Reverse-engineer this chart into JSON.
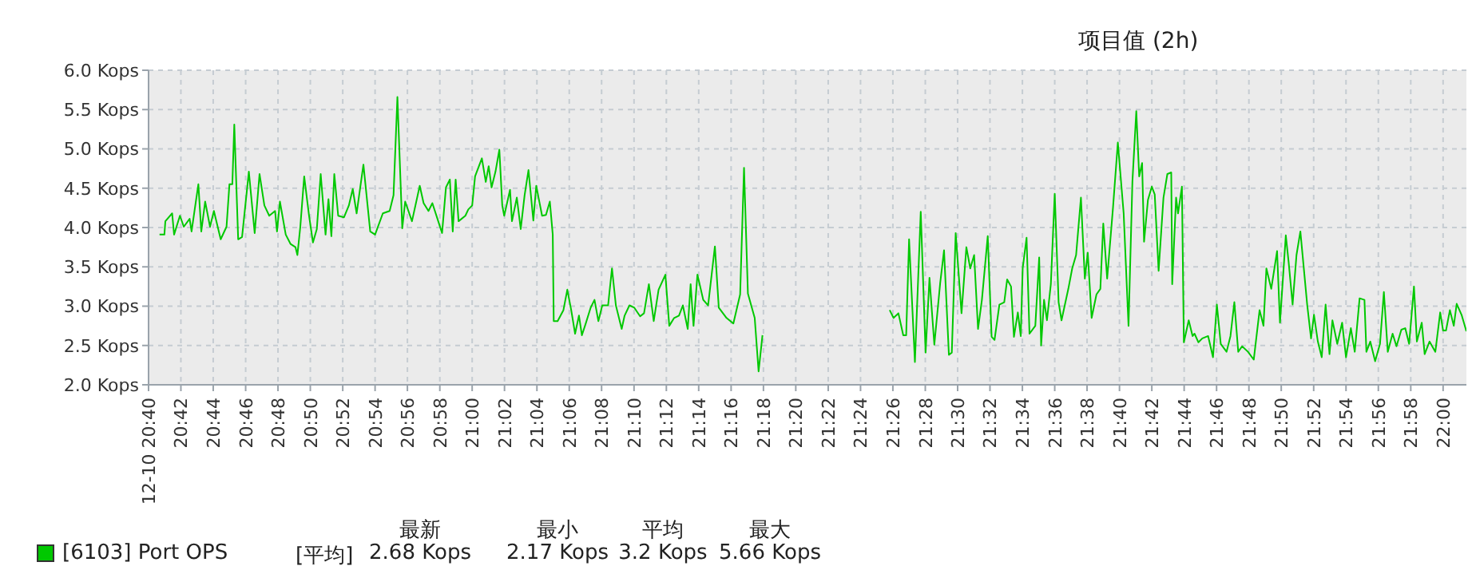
{
  "chart_data": {
    "type": "line",
    "title": "项目值 (2h)",
    "x": [
      20.678,
      20.683,
      20.684,
      20.691,
      20.693,
      20.699,
      20.703,
      20.709,
      20.711,
      20.714,
      20.718,
      20.721,
      20.725,
      20.73,
      20.734,
      20.741,
      20.747,
      20.75,
      20.753,
      20.755,
      20.759,
      20.763,
      20.77,
      20.776,
      20.781,
      20.786,
      20.791,
      20.797,
      20.799,
      20.802,
      20.808,
      20.813,
      20.818,
      20.82,
      20.823,
      20.827,
      20.832,
      20.836,
      20.84,
      20.844,
      20.849,
      20.852,
      20.855,
      20.858,
      20.862,
      20.868,
      20.873,
      20.877,
      20.881,
      20.888,
      20.895,
      20.9,
      20.908,
      20.915,
      20.919,
      20.923,
      20.928,
      20.931,
      20.938,
      20.946,
      20.95,
      20.955,
      20.959,
      20.969,
      20.973,
      20.977,
      20.98,
      20.983,
      20.986,
      20.993,
      20.996,
      21.0,
      21.003,
      21.01,
      21.014,
      21.017,
      21.02,
      21.024,
      21.028,
      21.031,
      21.033,
      21.039,
      21.041,
      21.046,
      21.05,
      21.054,
      21.058,
      21.063,
      21.066,
      21.072,
      21.076,
      21.08,
      21.083,
      21.084,
      21.088,
      21.094,
      21.098,
      21.102,
      21.106,
      21.11,
      21.113,
      21.117,
      21.122,
      21.126,
      21.13,
      21.134,
      21.14,
      21.144,
      21.148,
      21.154,
      21.157,
      21.162,
      21.167,
      21.173,
      21.177,
      21.182,
      21.187,
      21.192,
      21.199,
      21.203,
      21.208,
      21.213,
      21.217,
      21.222,
      21.225,
      21.228,
      21.232,
      21.238,
      21.243,
      21.25,
      21.254,
      21.262,
      21.269,
      21.276,
      21.28,
      21.284,
      21.291,
      21.295,
      21.299,
      21.36,
      21.43,
      21.434,
      21.439,
      21.444,
      21.447,
      21.45,
      21.456,
      21.462,
      21.467,
      21.471,
      21.476,
      21.482,
      21.486,
      21.491,
      21.494,
      21.498,
      21.504,
      21.509,
      21.513,
      21.517,
      21.521,
      21.525,
      21.531,
      21.535,
      21.538,
      21.543,
      21.548,
      21.551,
      21.555,
      21.558,
      21.562,
      21.565,
      21.567,
      21.571,
      21.574,
      21.58,
      21.584,
      21.586,
      21.589,
      21.592,
      21.596,
      21.6,
      21.604,
      21.607,
      21.614,
      21.618,
      21.622,
      21.627,
      21.631,
      21.634,
      21.638,
      21.643,
      21.647,
      21.65,
      21.654,
      21.66,
      21.665,
      21.671,
      21.676,
      21.68,
      21.684,
      21.687,
      21.69,
      21.692,
      21.696,
      21.7,
      21.703,
      21.707,
      21.712,
      21.716,
      21.72,
      21.721,
      21.725,
      21.727,
      21.731,
      21.733,
      21.738,
      21.742,
      21.744,
      21.748,
      21.752,
      21.758,
      21.763,
      21.767,
      21.771,
      21.777,
      21.781,
      21.785,
      21.789,
      21.793,
      21.799,
      21.805,
      21.811,
      21.815,
      21.818,
      21.823,
      21.829,
      21.832,
      21.838,
      21.841,
      21.845,
      21.849,
      21.853,
      21.857,
      21.86,
      21.864,
      21.867,
      21.871,
      21.875,
      21.879,
      21.883,
      21.886,
      21.891,
      21.896,
      21.9,
      21.905,
      21.909,
      21.914,
      21.919,
      21.921,
      21.925,
      21.93,
      21.935,
      21.939,
      21.943,
      21.948,
      21.952,
      21.957,
      21.961,
      21.965,
      21.97,
      21.973,
      21.978,
      21.981,
      21.986,
      21.992,
      21.997,
      22.0,
      22.003,
      22.007,
      22.011,
      22.014,
      22.019,
      22.024
    ],
    "series": [
      {
        "name": "[6103] Port OPS",
        "color": "#00c800",
        "values": [
          3.91,
          3.91,
          4.08,
          4.18,
          3.91,
          4.15,
          4.01,
          4.11,
          3.95,
          4.21,
          4.55,
          3.95,
          4.33,
          4.01,
          4.21,
          3.85,
          4.01,
          4.55,
          4.55,
          5.31,
          3.85,
          3.88,
          4.71,
          3.93,
          4.68,
          4.28,
          4.15,
          4.21,
          3.95,
          4.33,
          3.91,
          3.79,
          3.75,
          3.65,
          4.01,
          4.65,
          4.15,
          3.81,
          3.98,
          4.68,
          3.91,
          4.36,
          3.89,
          4.68,
          4.15,
          4.13,
          4.28,
          4.49,
          4.18,
          4.8,
          3.95,
          3.91,
          4.18,
          4.21,
          4.41,
          5.66,
          3.99,
          4.33,
          4.08,
          4.53,
          4.31,
          4.21,
          4.31,
          3.93,
          4.51,
          4.61,
          3.95,
          4.61,
          4.08,
          4.15,
          4.23,
          4.28,
          4.65,
          4.88,
          4.58,
          4.78,
          4.51,
          4.71,
          4.99,
          4.28,
          4.15,
          4.48,
          4.08,
          4.38,
          3.98,
          4.41,
          4.73,
          4.09,
          4.53,
          4.15,
          4.16,
          4.33,
          3.91,
          2.81,
          2.81,
          2.95,
          3.21,
          2.95,
          2.65,
          2.88,
          2.63,
          2.78,
          2.98,
          3.08,
          2.81,
          3.01,
          3.01,
          3.48,
          3.01,
          2.71,
          2.88,
          3.01,
          2.98,
          2.87,
          2.91,
          3.28,
          2.81,
          3.21,
          3.4,
          2.75,
          2.85,
          2.88,
          3.01,
          2.71,
          3.28,
          2.75,
          3.4,
          3.08,
          3.01,
          3.76,
          2.98,
          2.85,
          2.78,
          3.15,
          4.76,
          3.16,
          2.85,
          2.17,
          2.63,
          null,
          2.95,
          2.85,
          2.91,
          2.63,
          2.63,
          3.85,
          2.29,
          4.2,
          2.41,
          3.36,
          2.51,
          3.29,
          3.71,
          2.38,
          2.41,
          3.93,
          2.91,
          3.75,
          3.48,
          3.65,
          2.71,
          3.08,
          3.89,
          2.61,
          2.57,
          3.02,
          3.05,
          3.34,
          3.25,
          2.61,
          2.92,
          2.62,
          3.48,
          3.87,
          2.65,
          2.75,
          3.62,
          2.5,
          3.08,
          2.82,
          3.28,
          4.43,
          3.05,
          2.82,
          3.22,
          3.48,
          3.65,
          4.38,
          3.35,
          3.68,
          2.85,
          3.15,
          3.22,
          4.05,
          3.35,
          4.25,
          5.08,
          4.18,
          2.75,
          4.58,
          5.48,
          4.65,
          4.82,
          3.82,
          4.35,
          4.52,
          4.42,
          3.45,
          4.38,
          4.68,
          4.7,
          3.28,
          4.38,
          4.18,
          4.52,
          2.54,
          2.82,
          2.62,
          2.65,
          2.54,
          2.59,
          2.62,
          2.35,
          3.02,
          2.52,
          2.42,
          2.62,
          3.05,
          2.42,
          2.49,
          2.42,
          2.32,
          2.95,
          2.75,
          3.48,
          3.22,
          3.7,
          2.79,
          3.9,
          3.55,
          3.02,
          3.65,
          3.95,
          3.42,
          3.02,
          2.59,
          2.89,
          2.55,
          2.35,
          3.02,
          2.39,
          2.82,
          2.52,
          2.79,
          2.35,
          2.72,
          2.42,
          3.1,
          3.08,
          2.42,
          2.55,
          2.3,
          2.52,
          3.18,
          2.42,
          2.65,
          2.49,
          2.7,
          2.72,
          2.52,
          3.25,
          2.55,
          2.79,
          2.39,
          2.55,
          2.42,
          2.92,
          2.69,
          2.69,
          2.95,
          2.75,
          3.03,
          2.89,
          2.68
        ]
      }
    ],
    "xlim": [
      20.6667,
      22.024
    ],
    "xticks": [
      {
        "value": 20.6667,
        "label": "12-10 20:40"
      },
      {
        "value": 20.7,
        "label": "20:42"
      },
      {
        "value": 20.7333,
        "label": "20:44"
      },
      {
        "value": 20.7667,
        "label": "20:46"
      },
      {
        "value": 20.8,
        "label": "20:48"
      },
      {
        "value": 20.8333,
        "label": "20:50"
      },
      {
        "value": 20.8667,
        "label": "20:52"
      },
      {
        "value": 20.9,
        "label": "20:54"
      },
      {
        "value": 20.9333,
        "label": "20:56"
      },
      {
        "value": 20.9667,
        "label": "20:58"
      },
      {
        "value": 21,
        "label": "21:00"
      },
      {
        "value": 21.0333,
        "label": "21:02"
      },
      {
        "value": 21.0667,
        "label": "21:04"
      },
      {
        "value": 21.1,
        "label": "21:06"
      },
      {
        "value": 21.1333,
        "label": "21:08"
      },
      {
        "value": 21.1667,
        "label": "21:10"
      },
      {
        "value": 21.2,
        "label": "21:12"
      },
      {
        "value": 21.2333,
        "label": "21:14"
      },
      {
        "value": 21.2667,
        "label": "21:16"
      },
      {
        "value": 21.3,
        "label": "21:18"
      },
      {
        "value": 21.3333,
        "label": "21:20"
      },
      {
        "value": 21.3667,
        "label": "21:22"
      },
      {
        "value": 21.4,
        "label": "21:24"
      },
      {
        "value": 21.4333,
        "label": "21:26"
      },
      {
        "value": 21.4667,
        "label": "21:28"
      },
      {
        "value": 21.5,
        "label": "21:30"
      },
      {
        "value": 21.5333,
        "label": "21:32"
      },
      {
        "value": 21.5667,
        "label": "21:34"
      },
      {
        "value": 21.6,
        "label": "21:36"
      },
      {
        "value": 21.6333,
        "label": "21:38"
      },
      {
        "value": 21.6667,
        "label": "21:40"
      },
      {
        "value": 21.7,
        "label": "21:42"
      },
      {
        "value": 21.7333,
        "label": "21:44"
      },
      {
        "value": 21.7667,
        "label": "21:46"
      },
      {
        "value": 21.8,
        "label": "21:48"
      },
      {
        "value": 21.8333,
        "label": "21:50"
      },
      {
        "value": 21.8667,
        "label": "21:52"
      },
      {
        "value": 21.9,
        "label": "21:54"
      },
      {
        "value": 21.9333,
        "label": "21:56"
      },
      {
        "value": 21.9667,
        "label": "21:58"
      },
      {
        "value": 22,
        "label": "22:00"
      }
    ],
    "ylim": [
      2,
      6
    ],
    "yticks": [
      {
        "value": 2,
        "label": "2.0 Kops"
      },
      {
        "value": 2.5,
        "label": "2.5 Kops"
      },
      {
        "value": 3,
        "label": "3.0 Kops"
      },
      {
        "value": 3.5,
        "label": "3.5 Kops"
      },
      {
        "value": 4,
        "label": "4.0 Kops"
      },
      {
        "value": 4.5,
        "label": "4.5 Kops"
      },
      {
        "value": 5,
        "label": "5.0 Kops"
      },
      {
        "value": 5.5,
        "label": "5.5 Kops"
      },
      {
        "value": 6,
        "label": "6.0 Kops"
      }
    ],
    "grid": true,
    "legend": "bottom",
    "marker": "none",
    "line_style": "solid",
    "annotations": [
      "[平均]",
      "最新",
      "2.68 Kops",
      "最小",
      "2.17 Kops",
      "平均",
      "3.2 Kops",
      "最大",
      "5.66 Kops"
    ]
  }
}
